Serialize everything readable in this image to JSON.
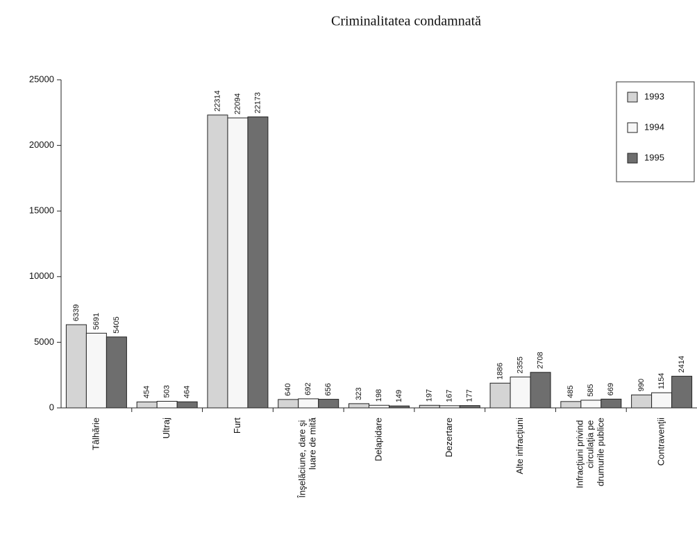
{
  "chart_data": {
    "type": "bar",
    "title": "Criminalitatea condamnată",
    "categories": [
      "Tâlhărie",
      "Ultraj",
      "Furt",
      "Înşelăciune, dare şi luare de mită",
      "Delapidare",
      "Dezertare",
      "Alte infracţiuni",
      "Infracţiuni privind circulaţia pe drumurile publice",
      "Contravenţii"
    ],
    "series": [
      {
        "name": "1993",
        "color": "#d4d4d4",
        "values": [
          6339,
          454,
          22314,
          640,
          323,
          197,
          1886,
          485,
          990
        ]
      },
      {
        "name": "1994",
        "color": "#f7f7f7",
        "values": [
          5691,
          503,
          22094,
          692,
          198,
          167,
          2355,
          585,
          1154
        ]
      },
      {
        "name": "1995",
        "color": "#6e6e6e",
        "values": [
          5405,
          464,
          22173,
          656,
          149,
          177,
          2708,
          669,
          2414
        ]
      }
    ],
    "ylim": [
      0,
      25000
    ],
    "yticks": [
      0,
      5000,
      10000,
      15000,
      20000,
      25000
    ],
    "grid": false,
    "legend": "top-right"
  }
}
